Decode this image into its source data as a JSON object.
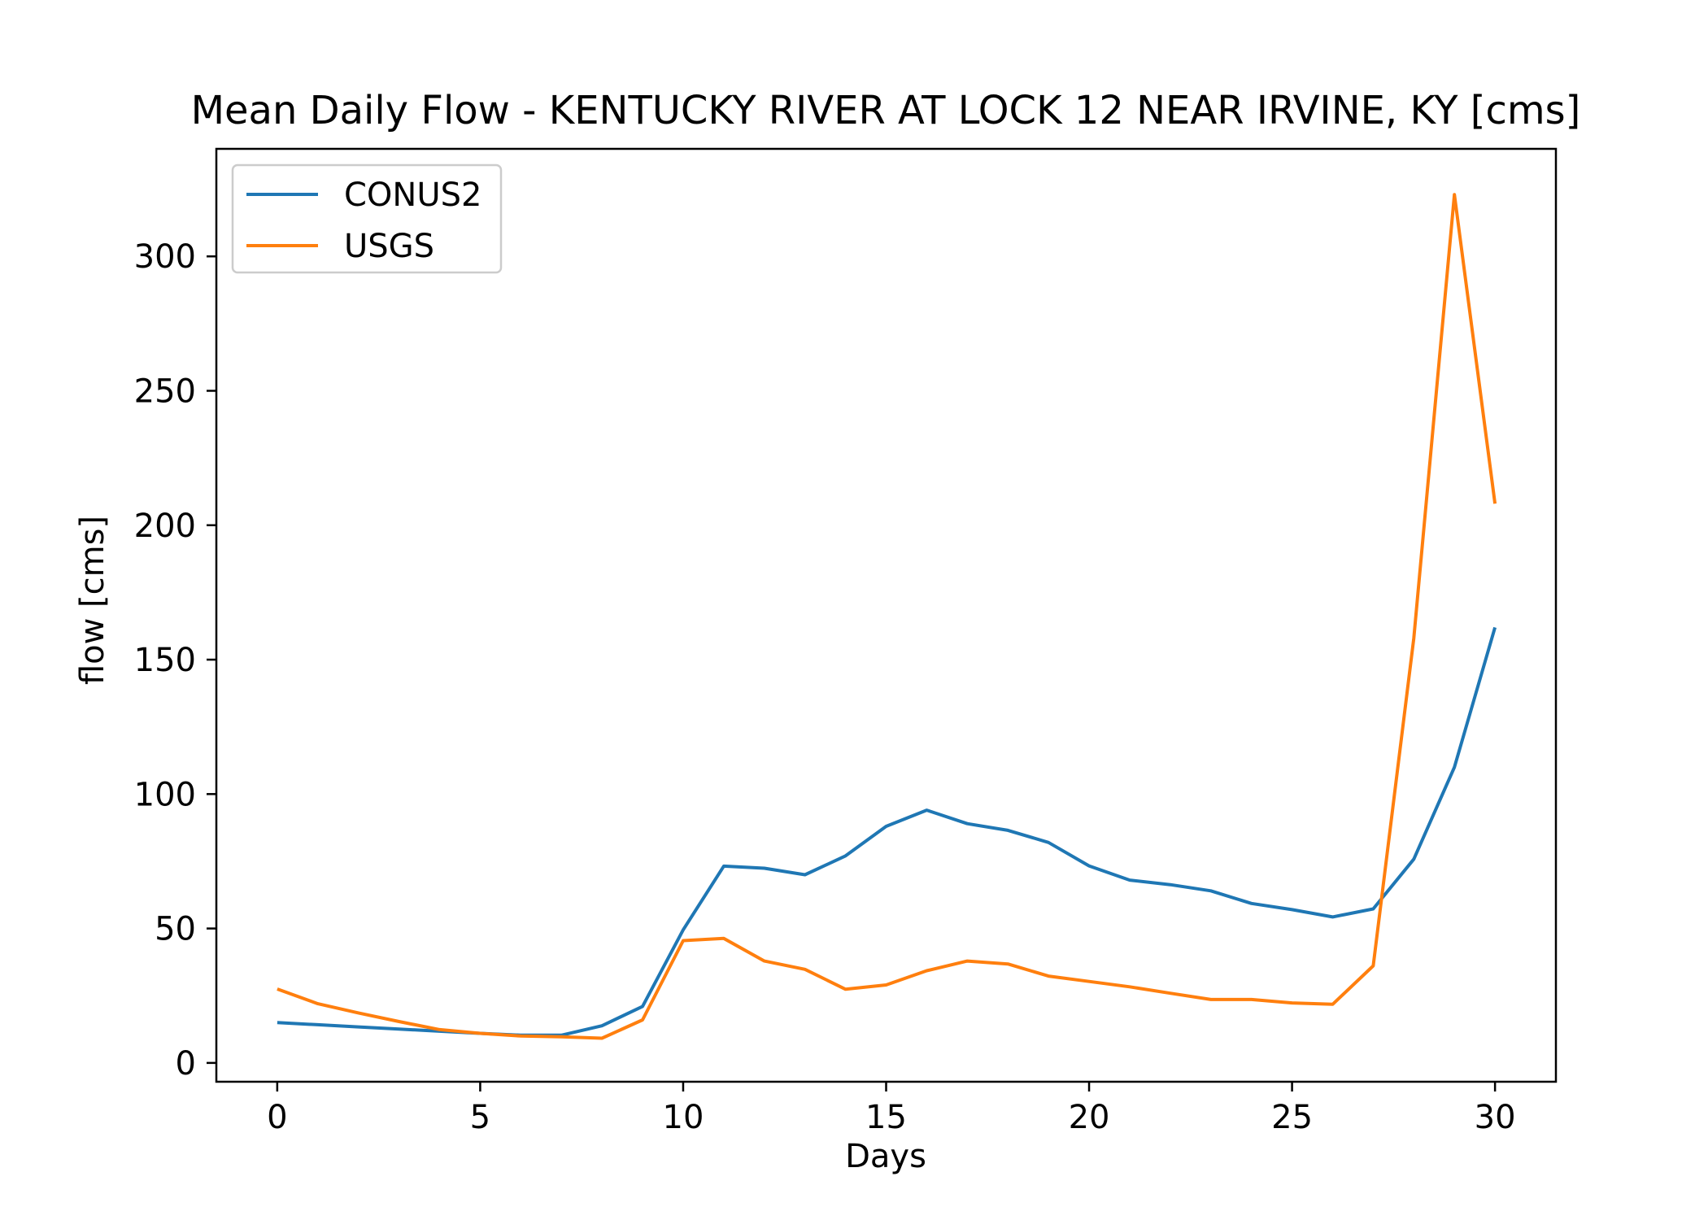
{
  "chart_data": {
    "type": "line",
    "title": "Mean Daily Flow - KENTUCKY RIVER AT LOCK 12 NEAR IRVINE, KY [cms]",
    "xlabel": "Days",
    "ylabel": "flow [cms]",
    "xlim": [
      -1.5,
      31.5
    ],
    "ylim": [
      -7,
      340
    ],
    "xticks": [
      0,
      5,
      10,
      15,
      20,
      25,
      30
    ],
    "yticks": [
      0,
      50,
      100,
      150,
      200,
      250,
      300
    ],
    "grid": false,
    "legend_position": "upper-left",
    "x": [
      0,
      1,
      2,
      3,
      4,
      5,
      6,
      7,
      8,
      9,
      10,
      11,
      12,
      13,
      14,
      15,
      16,
      17,
      18,
      19,
      20,
      21,
      22,
      23,
      24,
      25,
      26,
      27,
      28,
      29,
      30
    ],
    "series": [
      {
        "name": "CONUS2",
        "color": "#1f77b4",
        "values": [
          15,
          14.2,
          13.4,
          12.6,
          11.8,
          11,
          10.3,
          10.3,
          13.8,
          21,
          49.5,
          73.2,
          72.4,
          70,
          77,
          88,
          94,
          89,
          86.5,
          82,
          73.3,
          68,
          66.3,
          64,
          59.3,
          57,
          54.3,
          57.3,
          75.8,
          110,
          162
        ]
      },
      {
        "name": "USGS",
        "color": "#ff7f0e",
        "values": [
          27.5,
          22,
          18.6,
          15.4,
          12.4,
          11,
          10,
          9.7,
          9.2,
          16,
          45.5,
          46.3,
          37.9,
          34.8,
          27.4,
          29,
          34.3,
          37.9,
          36.8,
          32.3,
          30.3,
          28.3,
          25.9,
          23.6,
          23.6,
          22.3,
          21.8,
          36.1,
          158,
          323,
          208
        ]
      }
    ]
  }
}
